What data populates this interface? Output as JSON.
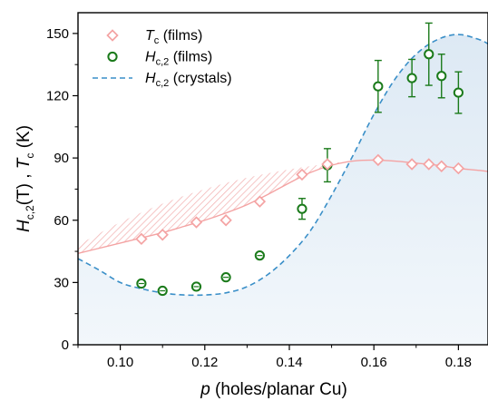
{
  "chart_data": {
    "type": "scatter",
    "xlabel": {
      "italic": "p",
      "rest": " (holes/planar Cu)"
    },
    "ylabel": {
      "h": "H",
      "hsub": "c,2",
      "hunit": "(T) , ",
      "t": "T",
      "tsub": "c",
      "tunit": " (K)"
    },
    "xlim": [
      0.09,
      0.187
    ],
    "ylim": [
      0,
      160
    ],
    "xticks": [
      "0.10",
      "0.12",
      "0.14",
      "0.16",
      "0.18"
    ],
    "yticks": [
      "0",
      "30",
      "60",
      "90",
      "120",
      "150"
    ],
    "legend": {
      "placement": "top-left",
      "entries": [
        {
          "main": "T",
          "sub": "c",
          "tail": " (films)"
        },
        {
          "main": "H",
          "sub": "c,2",
          "tail": " (films)"
        },
        {
          "main": "H",
          "sub": "c,2",
          "tail": " (crystals)"
        }
      ]
    },
    "colors": {
      "tc": "#f4a3a3",
      "hc2_films": "#1a7a1a",
      "hc2_crystals": "#3a8fc8",
      "shade": "#e6eff7",
      "tc_band": "#f6c4c4"
    },
    "tc_films": {
      "x": [
        0.105,
        0.11,
        0.118,
        0.125,
        0.133,
        0.143,
        0.149,
        0.161,
        0.169,
        0.173,
        0.176,
        0.18
      ],
      "y": [
        51,
        53,
        59,
        60,
        69,
        82,
        87,
        89,
        87,
        87,
        86,
        85
      ]
    },
    "hc2_films": {
      "x": [
        0.105,
        0.11,
        0.118,
        0.125,
        0.133,
        0.143,
        0.149,
        0.161,
        0.169,
        0.173,
        0.176,
        0.18
      ],
      "y": [
        29.5,
        26,
        28,
        32.5,
        43,
        65.5,
        86.5,
        124.5,
        128.5,
        140,
        129.5,
        121.5
      ],
      "err": [
        1.5,
        1.5,
        1.5,
        2,
        1.5,
        5,
        8,
        12.5,
        9,
        15,
        10.5,
        10
      ]
    },
    "hc2_crystals": {
      "x": [
        0.09,
        0.095,
        0.1,
        0.105,
        0.11,
        0.115,
        0.12,
        0.125,
        0.13,
        0.135,
        0.14,
        0.145,
        0.15,
        0.155,
        0.16,
        0.165,
        0.17,
        0.175,
        0.18,
        0.185,
        0.187
      ],
      "y": [
        41.5,
        36,
        30,
        27,
        25,
        24,
        24,
        25,
        28,
        34,
        43,
        55,
        72,
        91,
        111,
        128,
        140,
        147,
        149.5,
        147,
        145
      ]
    },
    "tc_curve": {
      "x": [
        0.09,
        0.095,
        0.1,
        0.105,
        0.11,
        0.115,
        0.12,
        0.125,
        0.13,
        0.135,
        0.14,
        0.145,
        0.15,
        0.155,
        0.16,
        0.165,
        0.17,
        0.175,
        0.18,
        0.185,
        0.187
      ],
      "y": [
        44,
        46.5,
        49,
        51.5,
        54,
        57,
        60,
        63.5,
        67.5,
        72.5,
        78,
        83,
        86.5,
        88.5,
        89,
        88.5,
        87.5,
        86.5,
        85,
        84,
        83.5
      ]
    },
    "tc_band_upper": {
      "x": [
        0.09,
        0.1,
        0.11,
        0.12,
        0.13,
        0.14,
        0.15,
        0.155
      ],
      "y": [
        48,
        59,
        68,
        75,
        80.5,
        84.5,
        87.5,
        88.5
      ]
    }
  }
}
